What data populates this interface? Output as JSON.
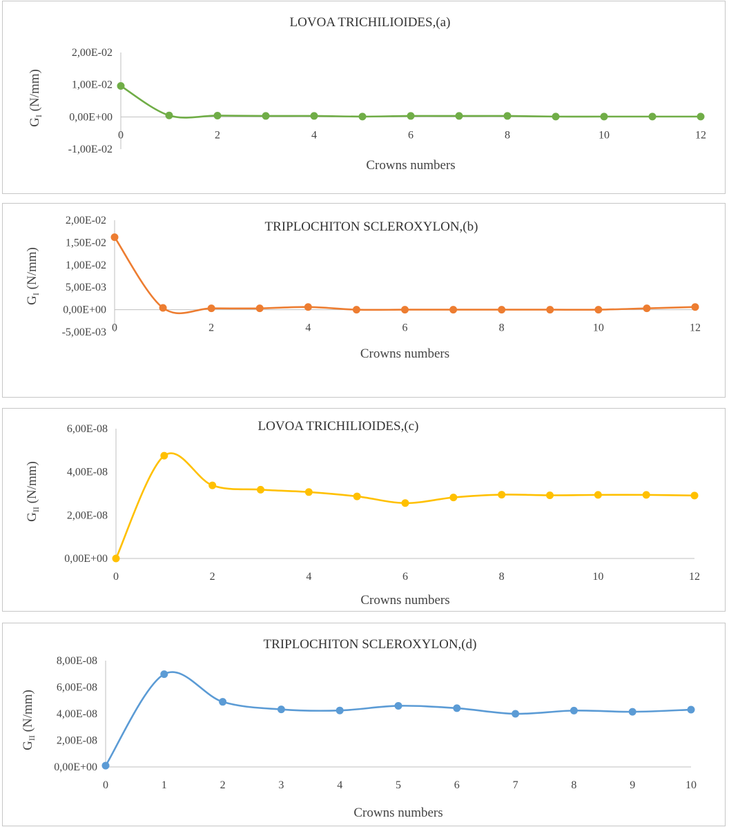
{
  "chart_data": [
    {
      "type": "line",
      "title": "LOVOA TRICHILIOIDES,(a)",
      "xlabel": "Crowns numbers",
      "ylabel_main": "G",
      "ylabel_sub": "I",
      "ylabel_unit": " (N/mm)",
      "xlim": [
        0,
        12
      ],
      "ylim": [
        -0.01,
        0.02
      ],
      "xticks": [
        0,
        2,
        4,
        6,
        8,
        10,
        12
      ],
      "xtick_labels": [
        "0",
        "2",
        "4",
        "6",
        "8",
        "10",
        "12"
      ],
      "yticks": [
        0.02,
        0.01,
        0.0,
        -0.01
      ],
      "ytick_labels": [
        "2,00E-02",
        "1,00E-02",
        "0,00E+00",
        "-1,00E-02"
      ],
      "grid": false,
      "color": "#70ad47",
      "series": [
        {
          "x": [
            0,
            1,
            2,
            3,
            4,
            5,
            6,
            7,
            8,
            9,
            10,
            11,
            12
          ],
          "values": [
            0.0096,
            0.00045,
            0.0004,
            0.0003,
            0.0003,
            0.0001,
            0.0003,
            0.0003,
            0.0003,
            0.0001,
            0.0001,
            0.0001,
            0.0001
          ]
        }
      ]
    },
    {
      "type": "line",
      "title": "TRIPLOCHITON SCLEROXYLON,(b)",
      "xlabel": "Crowns numbers",
      "ylabel_main": "G",
      "ylabel_sub": "I",
      "ylabel_unit": " (N/mm)",
      "xlim": [
        0,
        12
      ],
      "ylim": [
        -0.005,
        0.02
      ],
      "xticks": [
        0,
        2,
        4,
        6,
        8,
        10,
        12
      ],
      "xtick_labels": [
        "0",
        "2",
        "4",
        "6",
        "8",
        "10",
        "12"
      ],
      "yticks": [
        0.02,
        0.015,
        0.01,
        0.005,
        0.0,
        -0.005
      ],
      "ytick_labels": [
        "2,00E-02",
        "1,50E-02",
        "1,00E-02",
        "5,00E-03",
        "0,00E+00",
        "-5,00E-03"
      ],
      "grid": false,
      "color": "#ed7d31",
      "series": [
        {
          "x": [
            0,
            1,
            2,
            3,
            4,
            5,
            6,
            7,
            8,
            9,
            10,
            11,
            12
          ],
          "values": [
            0.0162,
            0.0004,
            0.0003,
            0.0003,
            0.0006,
            0.0,
            0.0,
            0.0,
            0.0,
            0.0,
            0.0,
            0.0003,
            0.0006
          ]
        }
      ]
    },
    {
      "type": "line",
      "title": "LOVOA TRICHILIOIDES,(c)",
      "xlabel": "Crowns numbers",
      "ylabel_main": "G",
      "ylabel_sub": "II",
      "ylabel_unit": " (N/mm)",
      "xlim": [
        0,
        12
      ],
      "ylim": [
        0,
        6e-08
      ],
      "xticks": [
        0,
        2,
        4,
        6,
        8,
        10,
        12
      ],
      "xtick_labels": [
        "0",
        "2",
        "4",
        "6",
        "8",
        "10",
        "12"
      ],
      "yticks": [
        6e-08,
        4e-08,
        2e-08,
        0
      ],
      "ytick_labels": [
        "6,00E-08",
        "4,00E-08",
        "2,00E-08",
        "0,00E+00"
      ],
      "grid": false,
      "color": "#ffc000",
      "series": [
        {
          "x": [
            0,
            1,
            2,
            3,
            4,
            5,
            6,
            7,
            8,
            9,
            10,
            11,
            12
          ],
          "values": [
            0,
            4.75e-08,
            3.38e-08,
            3.18e-08,
            3.07e-08,
            2.87e-08,
            2.56e-08,
            2.82e-08,
            2.95e-08,
            2.92e-08,
            2.94e-08,
            2.94e-08,
            2.91e-08
          ]
        }
      ]
    },
    {
      "type": "line",
      "title": "TRIPLOCHITON SCLEROXYLON,(d)",
      "xlabel": "Crowns numbers",
      "ylabel_main": "G",
      "ylabel_sub": "II",
      "ylabel_unit": " (N/mm)",
      "xlim": [
        0,
        10
      ],
      "ylim": [
        0,
        8e-08
      ],
      "xticks": [
        0,
        1,
        2,
        3,
        4,
        5,
        6,
        7,
        8,
        9,
        10
      ],
      "xtick_labels": [
        "0",
        "1",
        "2",
        "3",
        "4",
        "5",
        "6",
        "7",
        "8",
        "9",
        "10"
      ],
      "yticks": [
        8e-08,
        6e-08,
        4e-08,
        2e-08,
        0
      ],
      "ytick_labels": [
        "8,00E-08",
        "6,00E-08",
        "4,00E-08",
        "2,00E-08",
        "0,00E+00"
      ],
      "grid": false,
      "color": "#5b9bd5",
      "series": [
        {
          "x": [
            0,
            1,
            2,
            3,
            4,
            5,
            6,
            7,
            8,
            9,
            10
          ],
          "values": [
            1e-09,
            6.98e-08,
            4.9e-08,
            4.33e-08,
            4.25e-08,
            4.6e-08,
            4.42e-08,
            4e-08,
            4.24e-08,
            4.15e-08,
            4.31e-08
          ]
        }
      ]
    }
  ]
}
